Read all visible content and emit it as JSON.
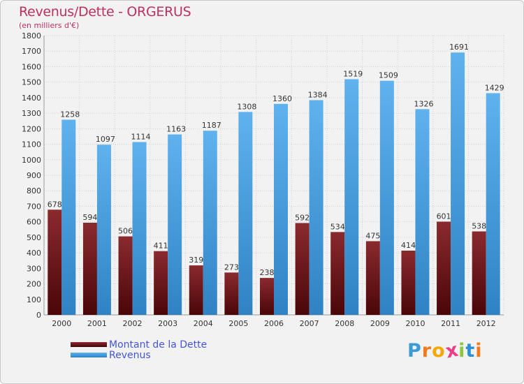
{
  "title": "Revenus/Dette - ORGERUS",
  "subtitle": "(en milliers d'€)",
  "logo": {
    "letters": [
      "P",
      "r",
      "o",
      "x",
      "i",
      "t",
      "i"
    ],
    "colors": [
      "#3a9bd9",
      "#f07a1e",
      "#f2a900",
      "#ea3d8a",
      "#8dc63f",
      "#2a8fd6",
      "#f07a1e"
    ]
  },
  "chart_data": {
    "type": "bar",
    "categories": [
      "2000",
      "2001",
      "2002",
      "2003",
      "2004",
      "2005",
      "2006",
      "2007",
      "2008",
      "2009",
      "2010",
      "2011",
      "2012"
    ],
    "series": [
      {
        "name": "Montant de la Dette",
        "color": "#7a1a1e",
        "values": [
          678,
          594,
          506,
          411,
          319,
          273,
          238,
          592,
          534,
          475,
          414,
          601,
          538
        ]
      },
      {
        "name": "Revenus",
        "color": "#4aa3e6",
        "values": [
          1258,
          1097,
          1114,
          1163,
          1187,
          1308,
          1360,
          1384,
          1519,
          1509,
          1326,
          1691,
          1429
        ]
      }
    ],
    "ylim": [
      0,
      1800
    ],
    "ytick_step": 100,
    "grid": true,
    "legend": "bottom-left"
  }
}
